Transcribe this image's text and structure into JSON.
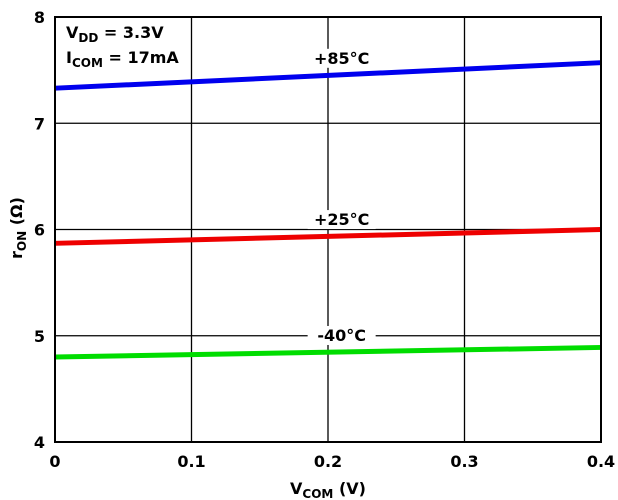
{
  "chart_data": {
    "type": "line",
    "xlim": [
      0,
      0.4
    ],
    "ylim": [
      4,
      8
    ],
    "x_ticks": [
      "0",
      "0.1",
      "0.2",
      "0.3",
      "0.4"
    ],
    "y_ticks": [
      "4",
      "5",
      "6",
      "7",
      "8"
    ],
    "grid": true,
    "xlabel": {
      "main": "V",
      "sub": "COM",
      "unit": " (V)"
    },
    "ylabel": {
      "main": "r",
      "sub": "ON",
      "unit": " (Ω)"
    },
    "conditions": [
      {
        "main": "V",
        "sub": "DD",
        "rest": " = 3.3V"
      },
      {
        "main": "I",
        "sub": "COM",
        "rest": " = 17mA"
      }
    ],
    "series": [
      {
        "label": "+85°C",
        "color": "#0000ee",
        "x": [
          0,
          0.4
        ],
        "y": [
          7.33,
          7.57
        ]
      },
      {
        "label": "+25°C",
        "color": "#ee0000",
        "x": [
          0,
          0.4
        ],
        "y": [
          5.87,
          6.0
        ]
      },
      {
        "label": "-40°C",
        "color": "#00dd00",
        "x": [
          0,
          0.4
        ],
        "y": [
          4.8,
          4.89
        ]
      }
    ]
  }
}
